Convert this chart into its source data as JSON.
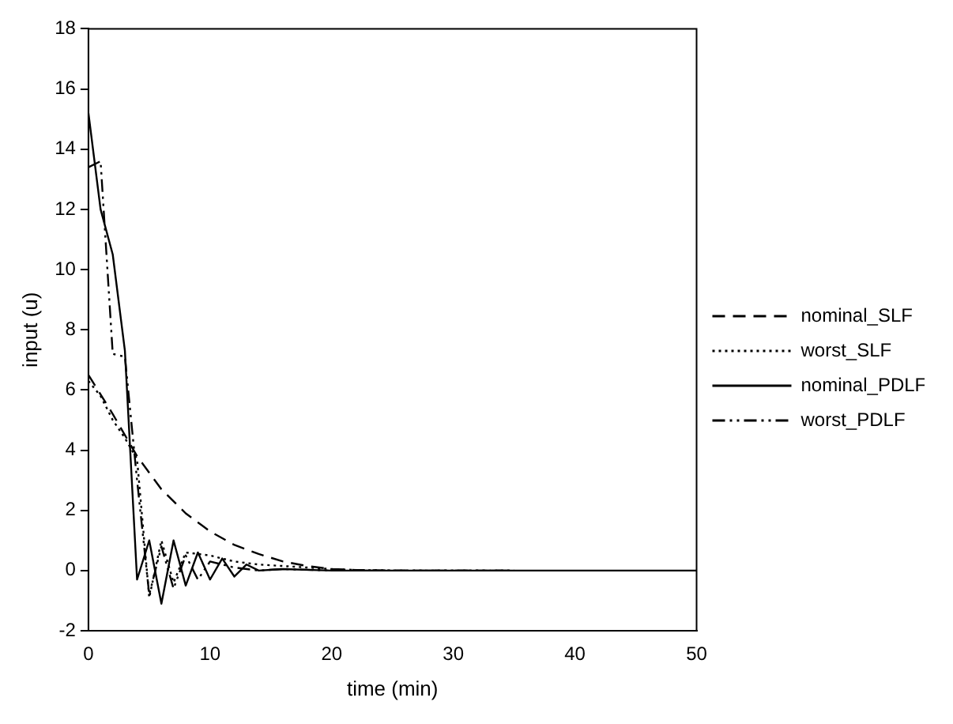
{
  "chart_data": {
    "type": "line",
    "xlabel": "time (min)",
    "ylabel": "input (u)",
    "xlim": [
      0,
      50
    ],
    "ylim": [
      -2,
      18
    ],
    "xticks": [
      0,
      10,
      20,
      30,
      40,
      50
    ],
    "yticks": [
      -2,
      0,
      2,
      4,
      6,
      8,
      10,
      12,
      14,
      16,
      18
    ],
    "grid": false,
    "legend": "right",
    "marker": "none",
    "series": [
      {
        "name": "nominal_SLF",
        "color": "#000000",
        "line_style": "dashed",
        "x": [
          0,
          2,
          4,
          6,
          8,
          10,
          12,
          14,
          16,
          18,
          20,
          22,
          25,
          30,
          35
        ],
        "values": [
          6.5,
          5.2,
          3.8,
          2.7,
          1.9,
          1.3,
          0.85,
          0.55,
          0.3,
          0.15,
          0.05,
          0.02,
          0,
          0,
          0
        ]
      },
      {
        "name": "worst_SLF",
        "color": "#000000",
        "line_style": "dotted",
        "x": [
          0,
          1,
          2,
          3,
          4,
          5,
          6,
          7,
          8,
          10,
          12,
          14,
          16,
          18,
          20,
          22,
          25,
          30,
          35
        ],
        "values": [
          6.3,
          5.8,
          5.0,
          4.4,
          3.7,
          -0.9,
          1.0,
          -0.4,
          0.6,
          0.5,
          0.3,
          0.2,
          0.15,
          0.1,
          0.05,
          0.02,
          0,
          0,
          0
        ]
      },
      {
        "name": "nominal_PDLF",
        "color": "#000000",
        "line_style": "solid",
        "x": [
          0,
          1,
          2,
          3,
          4,
          5,
          6,
          7,
          8,
          9,
          10,
          11,
          12,
          13,
          14,
          16,
          20,
          30,
          40,
          50
        ],
        "values": [
          15.2,
          12,
          10.5,
          7.3,
          -0.3,
          1,
          -1.1,
          1,
          -0.5,
          0.6,
          -0.3,
          0.4,
          -0.2,
          0.2,
          0,
          0.05,
          0,
          0,
          0,
          0
        ]
      },
      {
        "name": "worst_PDLF",
        "color": "#000000",
        "line_style": "dashdot",
        "x": [
          0,
          1,
          2,
          3,
          4,
          5,
          6,
          7,
          8,
          9,
          10,
          12,
          14,
          16,
          20,
          25,
          30,
          35
        ],
        "values": [
          13.4,
          13.6,
          7.2,
          7.1,
          3,
          -0.8,
          0.8,
          -0.6,
          0.5,
          -0.3,
          0.3,
          0.1,
          0,
          0.05,
          0,
          0,
          0,
          0
        ]
      }
    ]
  }
}
